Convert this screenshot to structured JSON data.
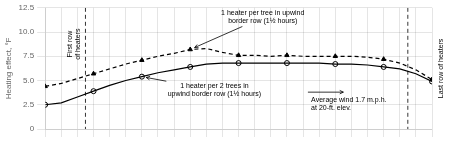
{
  "chart_data": {
    "type": "line",
    "y_label": "Heating effect, °F",
    "x": [
      0,
      1,
      2,
      3,
      4,
      5,
      6,
      7,
      8,
      9,
      10,
      11,
      12,
      13,
      14,
      15,
      16,
      17,
      18,
      19,
      20,
      21,
      22,
      23,
      24
    ],
    "xlim": [
      0,
      24
    ],
    "xticks": [
      0,
      1,
      2,
      3,
      4,
      5,
      6,
      7,
      8,
      9,
      10,
      11,
      12,
      13,
      14,
      15,
      16,
      17,
      18,
      19,
      20,
      21,
      22,
      23,
      24
    ],
    "ylim": [
      0,
      12.5
    ],
    "yticks": [
      0,
      2.5,
      {
        "value": 5.0,
        "label": "5.0"
      },
      7.5,
      {
        "value": 10.0,
        "label": "10.0"
      },
      12.5
    ],
    "grid": true,
    "tick_labels": "y",
    "series": [
      {
        "type": "line",
        "color": "#000000",
        "line_style": "dashed",
        "marker": "none",
        "values": [
          4.4,
          4.7,
          5.2,
          5.7,
          6.2,
          6.7,
          7.1,
          7.5,
          7.8,
          8.2,
          8.3,
          7.9,
          7.6,
          7.6,
          7.5,
          7.6,
          7.5,
          7.5,
          7.5,
          7.5,
          7.4,
          7.2,
          6.8,
          6.1,
          5.1
        ]
      },
      {
        "type": "scatter",
        "color": "#000000",
        "marker": "triangle",
        "x": [
          0,
          3,
          6,
          9,
          12,
          15,
          18,
          21,
          24
        ],
        "values": [
          4.4,
          5.7,
          7.1,
          8.2,
          7.6,
          7.6,
          7.5,
          7.2,
          5.1
        ]
      },
      {
        "type": "line",
        "color": "#000000",
        "line_style": "solid",
        "marker": "none",
        "values": [
          2.5,
          2.7,
          3.3,
          3.9,
          4.5,
          5.0,
          5.4,
          5.8,
          6.1,
          6.4,
          6.7,
          6.8,
          6.8,
          6.8,
          6.8,
          6.8,
          6.8,
          6.8,
          6.7,
          6.7,
          6.6,
          6.4,
          6.2,
          5.7,
          4.9
        ]
      },
      {
        "type": "scatter",
        "color": "#000000",
        "marker": "open_circle",
        "x": [
          0,
          3,
          6,
          9,
          12,
          15,
          18,
          21,
          24
        ],
        "values": [
          2.5,
          3.9,
          5.4,
          6.4,
          6.8,
          6.8,
          6.7,
          6.4,
          4.9
        ]
      }
    ],
    "vertical_lines": [
      {
        "x": 2.5,
        "label": "First row\nof heaters",
        "line_style": "dashed"
      },
      {
        "x": 22.5,
        "label": "Last row of heaters",
        "line_style": "dashed"
      }
    ],
    "annotations": [
      {
        "text": "1 heater per tree in upwind\nborder row (1½ hours)",
        "x": 13.5,
        "y": 11.5,
        "arrow_to": [
          9.0,
          8.2
        ]
      },
      {
        "text": "1 heater per 2 trees in\nupwind border row (1½ hours)",
        "x": 10.5,
        "y": 4.0,
        "arrow_to": [
          6.0,
          5.4
        ]
      },
      {
        "text": "Average wind 1.7 m.p.h.\nat 20-ft. elev.",
        "x": 16.5,
        "y": 3.3,
        "arrow": {
          "from": [
            16.3,
            3.8
          ],
          "to": [
            18.5,
            3.8
          ]
        }
      }
    ]
  }
}
